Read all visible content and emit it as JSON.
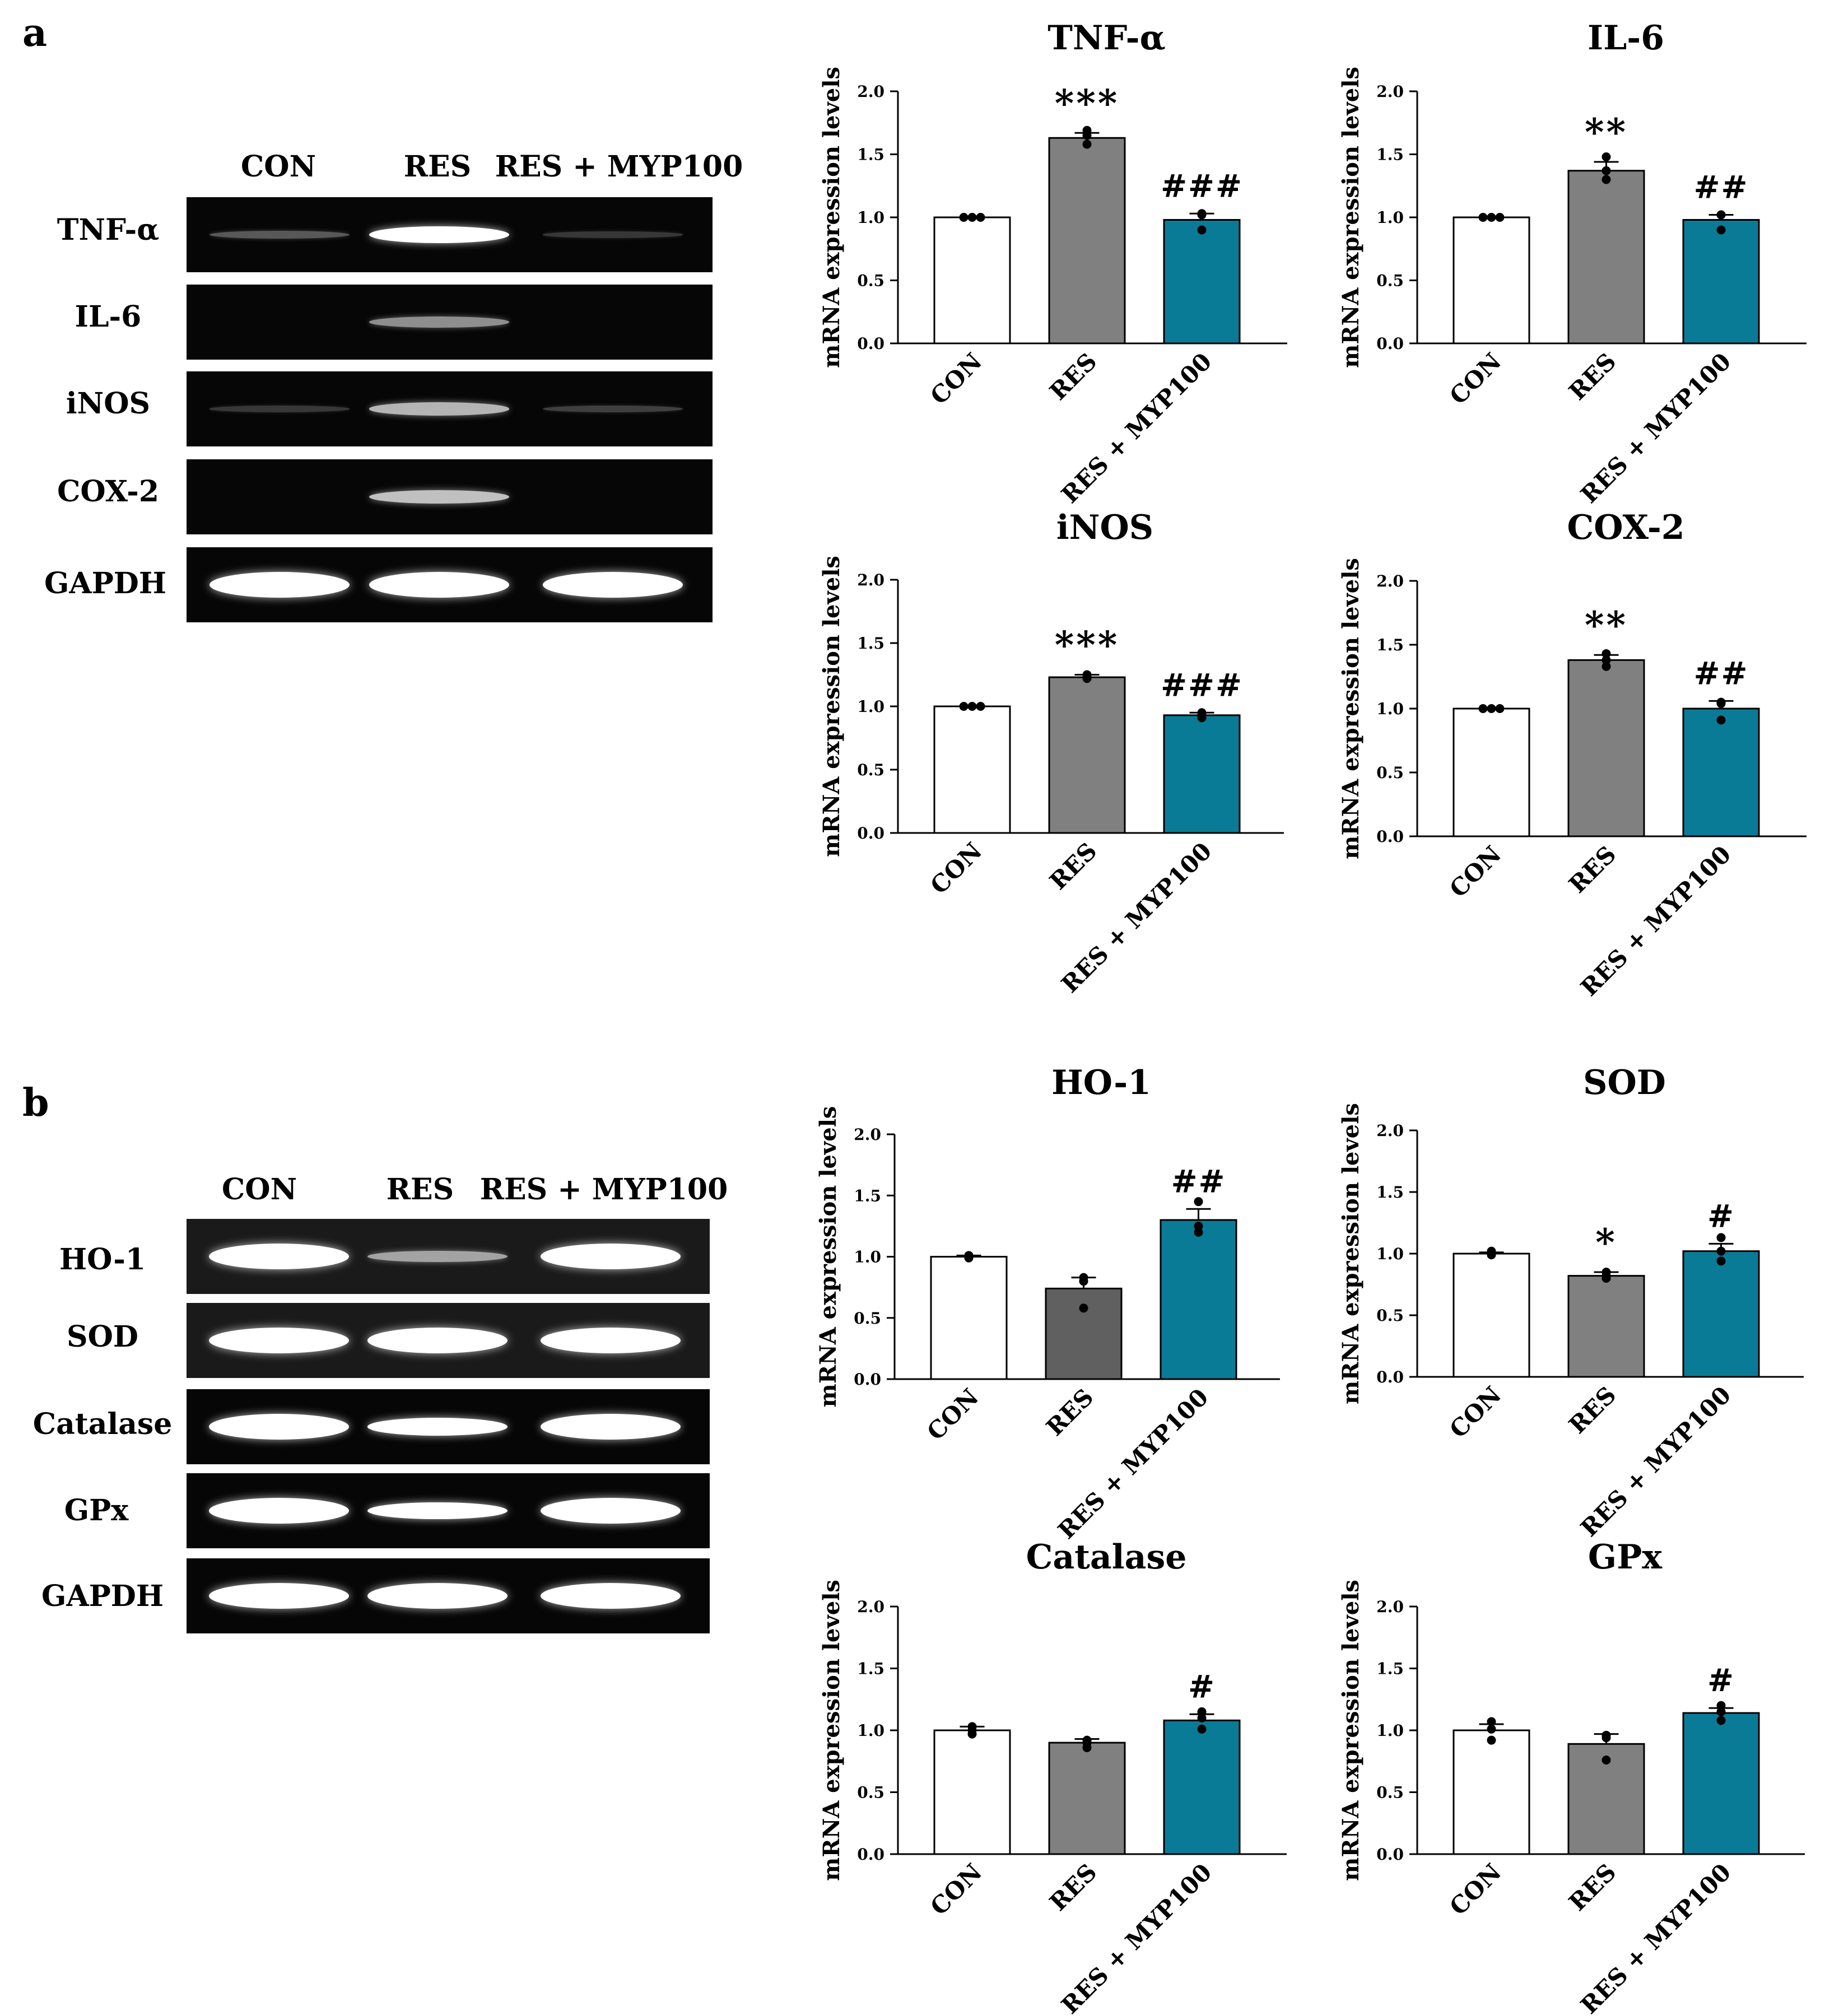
{
  "panels": [
    {
      "label": "a",
      "gel": {
        "lanes": [
          "CON",
          "RES",
          "RES + MYP100"
        ],
        "genes": [
          {
            "name": "TNF-α",
            "bands": [
              0.18,
              0.85,
              0.05
            ]
          },
          {
            "name": "IL-6",
            "bands": [
              0.0,
              0.4,
              0.0
            ]
          },
          {
            "name": "iNOS",
            "bands": [
              0.05,
              0.55,
              0.08
            ]
          },
          {
            "name": "COX-2",
            "bands": [
              0.0,
              0.6,
              0.0
            ]
          },
          {
            "name": "GAPDH",
            "bands": [
              1.0,
              1.0,
              0.95
            ]
          }
        ]
      }
    },
    {
      "label": "b",
      "gel": {
        "lanes": [
          "CON",
          "RES",
          "RES + MYP100"
        ],
        "genes": [
          {
            "name": "HO-1",
            "bands": [
              1.0,
              0.45,
              1.0
            ]
          },
          {
            "name": "SOD",
            "bands": [
              1.0,
              1.0,
              1.0
            ]
          },
          {
            "name": "Catalase",
            "bands": [
              0.95,
              0.9,
              0.95
            ]
          },
          {
            "name": "GPx",
            "bands": [
              0.95,
              0.85,
              0.95
            ]
          },
          {
            "name": "GAPDH",
            "bands": [
              1.0,
              1.0,
              1.0
            ]
          }
        ]
      }
    }
  ],
  "colors": {
    "CON": "#ffffff",
    "RES": "#808080",
    "RES_dark": "#606060",
    "RES + MYP100": "#0a7b96",
    "gel_background": "#060606",
    "band": "#ffffff"
  },
  "chart_data": [
    {
      "type": "bar",
      "title": "TNF-α",
      "ylabel": "mRNA expression levels",
      "ylim": [
        0,
        2.0
      ],
      "yticks": [
        "0.0",
        "0.5",
        "1.0",
        "1.5",
        "2.0"
      ],
      "categories": [
        "CON",
        "RES",
        "RES + MYP100"
      ],
      "values": [
        1.0,
        1.63,
        0.98
      ],
      "errors": [
        0.0,
        0.04,
        0.05
      ],
      "points": [
        [
          1.0,
          1.0,
          1.0
        ],
        [
          1.58,
          1.65,
          1.69
        ],
        [
          0.9,
          1.02,
          1.03
        ]
      ],
      "annotations": [
        "",
        "***",
        "###"
      ]
    },
    {
      "type": "bar",
      "title": "IL-6",
      "ylabel": "mRNA expression levels",
      "ylim": [
        0,
        2.0
      ],
      "yticks": [
        "0.0",
        "0.5",
        "1.0",
        "1.5",
        "2.0"
      ],
      "categories": [
        "CON",
        "RES",
        "RES + MYP100"
      ],
      "values": [
        1.0,
        1.37,
        0.98
      ],
      "errors": [
        0.0,
        0.07,
        0.04
      ],
      "points": [
        [
          1.0,
          1.0,
          1.0
        ],
        [
          1.3,
          1.37,
          1.48
        ],
        [
          0.9,
          1.02,
          1.02
        ]
      ],
      "annotations": [
        "",
        "**",
        "##"
      ]
    },
    {
      "type": "bar",
      "title": "iNOS",
      "ylabel": "mRNA expression levels",
      "ylim": [
        0,
        2.0
      ],
      "yticks": [
        "0.0",
        "0.5",
        "1.0",
        "1.5",
        "2.0"
      ],
      "categories": [
        "CON",
        "RES",
        "RES + MYP100"
      ],
      "values": [
        1.0,
        1.23,
        0.93
      ],
      "errors": [
        0.0,
        0.02,
        0.02
      ],
      "points": [
        [
          1.0,
          1.0,
          1.0
        ],
        [
          1.22,
          1.23,
          1.25
        ],
        [
          0.91,
          0.93,
          0.95
        ]
      ],
      "annotations": [
        "",
        "***",
        "###"
      ]
    },
    {
      "type": "bar",
      "title": "COX-2",
      "ylabel": "mRNA expression levels",
      "ylim": [
        0,
        2.0
      ],
      "yticks": [
        "0.0",
        "0.5",
        "1.0",
        "1.5",
        "2.0"
      ],
      "categories": [
        "CON",
        "RES",
        "RES + MYP100"
      ],
      "values": [
        1.0,
        1.38,
        1.0
      ],
      "errors": [
        0.0,
        0.04,
        0.06
      ],
      "points": [
        [
          1.0,
          1.0,
          1.0
        ],
        [
          1.33,
          1.38,
          1.43
        ],
        [
          0.91,
          1.04,
          1.05
        ]
      ],
      "annotations": [
        "",
        "**",
        "##"
      ]
    },
    {
      "type": "bar",
      "title": "HO-1",
      "ylabel": "mRNA expression levels",
      "ylim": [
        0,
        2.0
      ],
      "yticks": [
        "0.0",
        "0.5",
        "1.0",
        "1.5",
        "2.0"
      ],
      "categories": [
        "CON",
        "RES",
        "RES + MYP100"
      ],
      "values": [
        1.0,
        0.74,
        1.3
      ],
      "errors": [
        0.01,
        0.09,
        0.09
      ],
      "points": [
        [
          0.99,
          1.0,
          1.01
        ],
        [
          0.58,
          0.8,
          0.83
        ],
        [
          1.2,
          1.25,
          1.45
        ]
      ],
      "annotations": [
        "",
        "",
        "##"
      ]
    },
    {
      "type": "bar",
      "title": "SOD",
      "ylabel": "mRNA expression levels",
      "ylim": [
        0,
        2.0
      ],
      "yticks": [
        "0.0",
        "0.5",
        "1.0",
        "1.5",
        "2.0"
      ],
      "categories": [
        "CON",
        "RES",
        "RES + MYP100"
      ],
      "values": [
        1.0,
        0.82,
        1.02
      ],
      "errors": [
        0.01,
        0.03,
        0.06
      ],
      "points": [
        [
          0.99,
          1.0,
          1.02
        ],
        [
          0.8,
          0.82,
          0.85
        ],
        [
          0.94,
          1.02,
          1.13
        ]
      ],
      "annotations": [
        "",
        "*",
        "#"
      ]
    },
    {
      "type": "bar",
      "title": "Catalase",
      "ylabel": "mRNA expression levels",
      "ylim": [
        0,
        2.0
      ],
      "yticks": [
        "0.0",
        "0.5",
        "1.0",
        "1.5",
        "2.0"
      ],
      "categories": [
        "CON",
        "RES",
        "RES + MYP100"
      ],
      "values": [
        1.0,
        0.9,
        1.08
      ],
      "errors": [
        0.03,
        0.03,
        0.05
      ],
      "points": [
        [
          0.97,
          1.0,
          1.03
        ],
        [
          0.86,
          0.9,
          0.92
        ],
        [
          1.01,
          1.1,
          1.15
        ]
      ],
      "annotations": [
        "",
        "",
        "#"
      ]
    },
    {
      "type": "bar",
      "title": "GPx",
      "ylabel": "mRNA expression levels",
      "ylim": [
        0,
        2.0
      ],
      "yticks": [
        "0.0",
        "0.5",
        "1.0",
        "1.5",
        "2.0"
      ],
      "categories": [
        "CON",
        "RES",
        "RES + MYP100"
      ],
      "values": [
        1.0,
        0.89,
        1.14
      ],
      "errors": [
        0.05,
        0.08,
        0.04
      ],
      "points": [
        [
          0.92,
          1.01,
          1.07
        ],
        [
          0.76,
          0.94,
          0.96
        ],
        [
          1.08,
          1.15,
          1.2
        ]
      ],
      "annotations": [
        "",
        "",
        "#"
      ]
    }
  ]
}
